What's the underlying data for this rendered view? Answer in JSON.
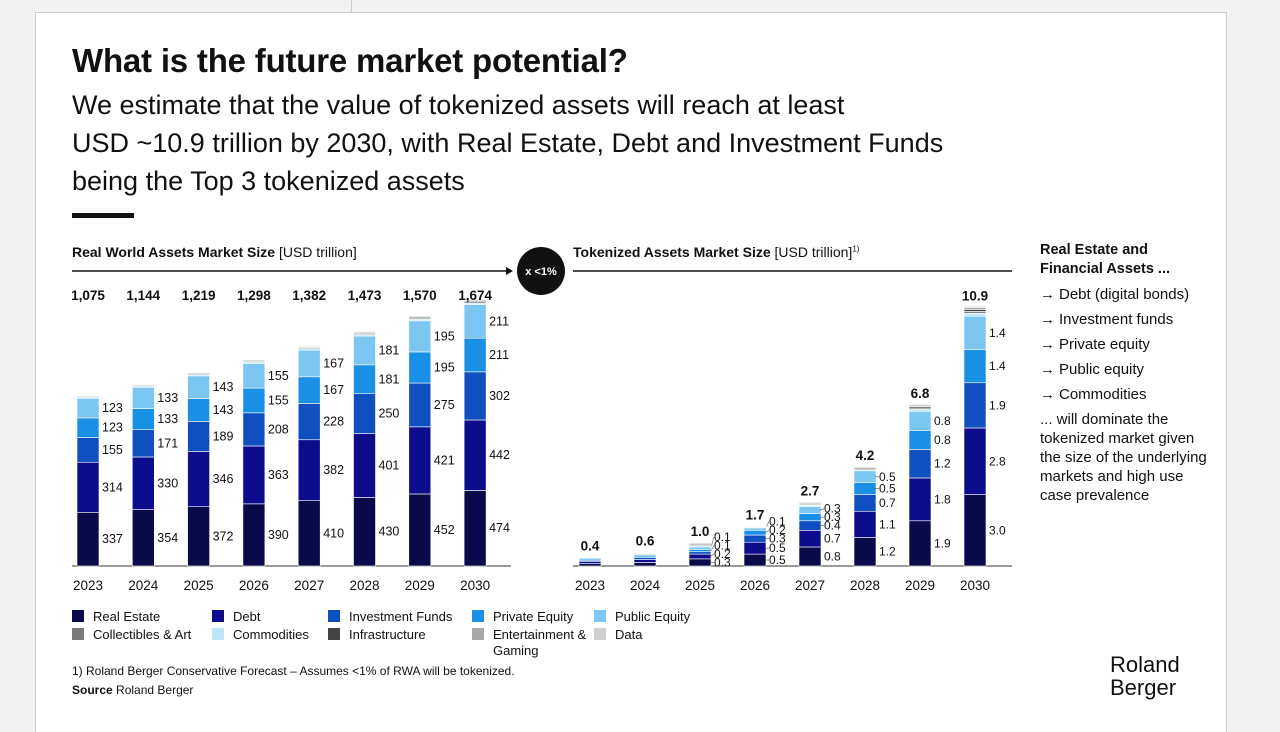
{
  "title": "What is the future market potential?",
  "subtitle_lines": [
    "We estimate that the value of tokenized assets will reach at least",
    "USD ~10.9 trillion by 2030, with Real Estate, Debt and Investment Funds",
    "being the Top 3 tokenized assets"
  ],
  "left_header": {
    "bold": "Real World Assets Market Size",
    "unit": "[USD trillion]"
  },
  "right_header": {
    "bold": "Tokenized Assets Market Size",
    "unit": "[USD trillion]",
    "sup": "1)"
  },
  "multiplier_label": "x <1%",
  "right_panel": {
    "heading": "Real Estate and Financial Assets ...",
    "items": [
      {
        "arrow": "→",
        "text": "Debt (digital bonds)"
      },
      {
        "arrow": "→",
        "text": "Investment funds"
      },
      {
        "arrow": "→",
        "text": "Private equity"
      },
      {
        "arrow": "→",
        "text": "Public equity"
      },
      {
        "arrow": "→",
        "text": "Commodities"
      }
    ],
    "footer": "... will dominate the tokenized market given the size of the underlying markets and high use case prevalence"
  },
  "colors": {
    "real_estate": "#0a0a4a",
    "debt": "#0c0c8c",
    "investment_funds": "#0f4fbf",
    "private_equity": "#1a8fe6",
    "public_equity": "#7cc6f2",
    "collectibles": "#7a7a7a",
    "commodities": "#bfe6f7",
    "infrastructure": "#444444",
    "entertainment": "#a8a8a8",
    "data": "#cfcfcf"
  },
  "legend": [
    {
      "key": "real_estate",
      "label": "Real Estate"
    },
    {
      "key": "debt",
      "label": "Debt"
    },
    {
      "key": "investment_funds",
      "label": "Investment Funds"
    },
    {
      "key": "private_equity",
      "label": "Private Equity"
    },
    {
      "key": "public_equity",
      "label": "Public Equity"
    },
    {
      "key": "collectibles",
      "label": "Collectibles & Art"
    },
    {
      "key": "commodities",
      "label": "Commodities"
    },
    {
      "key": "infrastructure",
      "label": "Infrastructure"
    },
    {
      "key": "entertainment",
      "label": "Entertainment & Gaming"
    },
    {
      "key": "data",
      "label": "Data"
    }
  ],
  "footnote": "1) Roland Berger Conservative Forecast – Assumes <1% of RWA will be tokenized.",
  "source": {
    "bold": "Source",
    "text": "Roland Berger"
  },
  "brand": [
    "Roland",
    "Berger"
  ],
  "chart_data": [
    {
      "type": "bar",
      "stacked": true,
      "title": "Real World Assets Market Size",
      "ylabel": "USD trillion",
      "categories": [
        "2023",
        "2024",
        "2025",
        "2026",
        "2027",
        "2028",
        "2029",
        "2030"
      ],
      "totals": [
        "1,075",
        "1,144",
        "1,219",
        "1,298",
        "1,382",
        "1,473",
        "1,570",
        "1,674"
      ],
      "ylim": [
        0,
        1700
      ],
      "series": [
        {
          "key": "real_estate",
          "name": "Real Estate",
          "values": [
            337,
            354,
            372,
            390,
            410,
            430,
            452,
            474
          ],
          "labels": [
            "337",
            "354",
            "372",
            "390",
            "410",
            "430",
            "452",
            "474"
          ]
        },
        {
          "key": "debt",
          "name": "Debt",
          "values": [
            314,
            330,
            346,
            363,
            382,
            401,
            421,
            442
          ],
          "labels": [
            "314",
            "330",
            "346",
            "363",
            "382",
            "401",
            "421",
            "442"
          ]
        },
        {
          "key": "investment_funds",
          "name": "Investment Funds",
          "values": [
            155,
            171,
            189,
            208,
            228,
            250,
            275,
            302
          ],
          "labels": [
            "155",
            "171",
            "189",
            "208",
            "228",
            "250",
            "275",
            "302"
          ]
        },
        {
          "key": "private_equity",
          "name": "Private Equity",
          "values": [
            123,
            133,
            143,
            155,
            167,
            181,
            195,
            211
          ],
          "labels": [
            "123",
            "133",
            "143",
            "155",
            "167",
            "181",
            "195",
            "211"
          ]
        },
        {
          "key": "public_equity",
          "name": "Public Equity",
          "values": [
            123,
            133,
            143,
            155,
            167,
            181,
            195,
            211
          ],
          "labels": [
            "123",
            "133",
            "143",
            "155",
            "167",
            "181",
            "195",
            "211"
          ]
        },
        {
          "key": "commodities",
          "name": "Commodities",
          "values": [
            8,
            8,
            8,
            9,
            9,
            9,
            10,
            10
          ]
        },
        {
          "key": "collectibles",
          "name": "Collectibles & Art",
          "values": [
            5,
            5,
            6,
            6,
            6,
            7,
            7,
            8
          ]
        },
        {
          "key": "infrastructure",
          "name": "Infrastructure",
          "values": [
            4,
            4,
            5,
            5,
            5,
            6,
            6,
            6
          ]
        },
        {
          "key": "entertainment",
          "name": "Entertainment & Gaming",
          "values": [
            4,
            4,
            5,
            5,
            5,
            6,
            6,
            6
          ]
        },
        {
          "key": "data",
          "name": "Data",
          "values": [
            2,
            2,
            2,
            2,
            3,
            3,
            3,
            4
          ]
        }
      ]
    },
    {
      "type": "bar",
      "stacked": true,
      "title": "Tokenized Assets Market Size",
      "ylabel": "USD trillion",
      "categories": [
        "2023",
        "2024",
        "2025",
        "2026",
        "2027",
        "2028",
        "2029",
        "2030"
      ],
      "totals": [
        "0.4",
        "0.6",
        "1.0",
        "1.7",
        "2.7",
        "4.2",
        "6.8",
        "10.9"
      ],
      "ylim": [
        0,
        11
      ],
      "series": [
        {
          "key": "real_estate",
          "name": "Real Estate",
          "values": [
            0.1,
            0.15,
            0.3,
            0.5,
            0.8,
            1.2,
            1.9,
            3.0
          ],
          "labels": [
            null,
            null,
            "0.3",
            "0.5",
            "0.8",
            "1.2",
            "1.9",
            "3.0"
          ]
        },
        {
          "key": "debt",
          "name": "Debt",
          "values": [
            0.08,
            0.12,
            0.2,
            0.5,
            0.7,
            1.1,
            1.8,
            2.8
          ],
          "labels": [
            null,
            null,
            "0.2",
            "0.5",
            "0.7",
            "1.1",
            "1.8",
            "2.8"
          ]
        },
        {
          "key": "investment_funds",
          "name": "Investment Funds",
          "values": [
            0.06,
            0.08,
            0.1,
            0.3,
            0.4,
            0.7,
            1.2,
            1.9
          ],
          "labels": [
            null,
            null,
            "0.1",
            "0.3",
            "0.4",
            "0.7",
            "1.2",
            "1.9"
          ]
        },
        {
          "key": "private_equity",
          "name": "Private Equity",
          "values": [
            0.05,
            0.07,
            0.1,
            0.2,
            0.3,
            0.5,
            0.8,
            1.4
          ],
          "labels": [
            null,
            null,
            "0.1",
            "0.2",
            "0.3",
            "0.5",
            "0.8",
            "1.4"
          ]
        },
        {
          "key": "public_equity",
          "name": "Public Equity",
          "values": [
            0.05,
            0.07,
            0.1,
            0.1,
            0.3,
            0.5,
            0.8,
            1.4
          ],
          "labels": [
            null,
            null,
            null,
            "0.1",
            "0.3",
            "0.5",
            "0.8",
            "1.4"
          ]
        },
        {
          "key": "commodities",
          "name": "Commodities",
          "values": [
            0.02,
            0.04,
            0.06,
            0.03,
            0.05,
            0.05,
            0.08,
            0.12
          ]
        },
        {
          "key": "collectibles",
          "name": "Collectibles & Art",
          "values": [
            0.01,
            0.02,
            0.04,
            0.03,
            0.04,
            0.04,
            0.06,
            0.08
          ]
        },
        {
          "key": "infrastructure",
          "name": "Infrastructure",
          "values": [
            0.01,
            0.02,
            0.04,
            0.02,
            0.04,
            0.04,
            0.06,
            0.08
          ]
        },
        {
          "key": "entertainment",
          "name": "Entertainment & Gaming",
          "values": [
            0.01,
            0.02,
            0.04,
            0.01,
            0.03,
            0.04,
            0.06,
            0.08
          ]
        },
        {
          "key": "data",
          "name": "Data",
          "values": [
            0.01,
            0.01,
            0.02,
            0.01,
            0.04,
            0.03,
            0.04,
            0.05
          ]
        }
      ]
    }
  ]
}
